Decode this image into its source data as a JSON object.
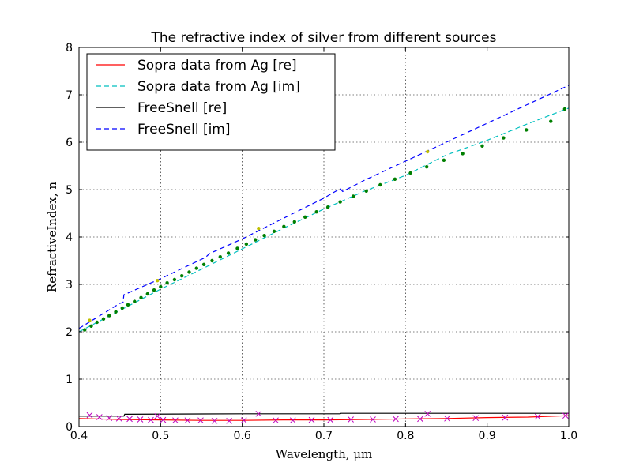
{
  "chart_data": {
    "type": "line",
    "title": "The refractive index of silver from different sources",
    "xlabel": "Wavelength, μm",
    "ylabel": "RefractiveIndex, n",
    "xlim": [
      0.4,
      1.0
    ],
    "ylim": [
      0,
      8
    ],
    "x_ticks": [
      "0.4",
      "0.5",
      "0.6",
      "0.7",
      "0.8",
      "0.9",
      "1.0"
    ],
    "y_ticks": [
      "0",
      "1",
      "2",
      "3",
      "4",
      "5",
      "6",
      "7",
      "8"
    ],
    "grid": true,
    "legend_position": "top-left",
    "series": [
      {
        "name": "Sopra data from Ag [re]",
        "color": "#ff0000",
        "dash": "solid",
        "x": [
          0.4,
          0.45,
          0.5,
          0.55,
          0.6,
          0.65,
          0.7,
          0.75,
          0.8,
          0.85,
          0.9,
          0.95,
          1.0
        ],
        "y": [
          0.17,
          0.15,
          0.14,
          0.13,
          0.13,
          0.14,
          0.14,
          0.15,
          0.16,
          0.17,
          0.19,
          0.2,
          0.23
        ]
      },
      {
        "name": "Sopra data from Ag [im]",
        "color": "#00bfbf",
        "dash": "dashed",
        "x": [
          0.4,
          0.45,
          0.5,
          0.55,
          0.6,
          0.65,
          0.7,
          0.75,
          0.8,
          0.85,
          0.9,
          0.95,
          1.0
        ],
        "y": [
          2.0,
          2.45,
          2.9,
          3.32,
          3.75,
          4.18,
          4.59,
          4.97,
          5.3,
          5.73,
          6.04,
          6.39,
          6.72
        ]
      },
      {
        "name": "FreeSnell [re]",
        "color": "#000000",
        "dash": "solid",
        "x": [
          0.4,
          0.455,
          0.456,
          0.6,
          0.72,
          0.721,
          1.0
        ],
        "y": [
          0.22,
          0.22,
          0.26,
          0.27,
          0.27,
          0.28,
          0.28
        ]
      },
      {
        "name": "FreeSnell [im]",
        "color": "#0000ff",
        "dash": "dashed",
        "x": [
          0.4,
          0.45,
          0.454,
          0.455,
          0.5,
          0.555,
          0.558,
          0.56,
          0.6,
          0.65,
          0.7,
          0.72,
          0.723,
          0.75,
          0.8,
          0.85,
          0.9,
          0.95,
          1.0
        ],
        "y": [
          2.07,
          2.6,
          2.62,
          2.78,
          3.12,
          3.57,
          3.62,
          3.65,
          3.96,
          4.39,
          4.82,
          5.02,
          4.96,
          5.2,
          5.6,
          6.0,
          6.4,
          6.8,
          7.2
        ]
      }
    ],
    "markers": [
      {
        "shape": "dot",
        "color": "#007f00",
        "x": [
          0.407,
          0.415,
          0.422,
          0.43,
          0.437,
          0.445,
          0.453,
          0.46,
          0.468,
          0.476,
          0.484,
          0.492,
          0.5,
          0.508,
          0.517,
          0.526,
          0.535,
          0.544,
          0.553,
          0.563,
          0.573,
          0.583,
          0.594,
          0.605,
          0.616,
          0.627,
          0.639,
          0.651,
          0.664,
          0.677,
          0.691,
          0.705,
          0.72,
          0.736,
          0.752,
          0.769,
          0.787,
          0.806,
          0.826,
          0.847,
          0.87,
          0.894,
          0.92,
          0.948,
          0.978,
          0.995
        ],
        "y": [
          2.04,
          2.12,
          2.2,
          2.27,
          2.34,
          2.42,
          2.5,
          2.57,
          2.64,
          2.72,
          2.8,
          2.88,
          2.95,
          3.03,
          3.1,
          3.18,
          3.26,
          3.34,
          3.42,
          3.5,
          3.58,
          3.66,
          3.76,
          3.85,
          3.94,
          4.03,
          4.12,
          4.22,
          4.32,
          4.42,
          4.53,
          4.63,
          4.74,
          4.86,
          4.97,
          5.1,
          5.22,
          5.35,
          5.48,
          5.62,
          5.76,
          5.92,
          6.09,
          6.26,
          6.44,
          6.7
        ]
      },
      {
        "shape": "dot",
        "color": "#bfbf00",
        "x": [
          0.413,
          0.496,
          0.62,
          0.827
        ],
        "y": [
          2.24,
          3.08,
          4.18,
          5.8
        ]
      },
      {
        "shape": "x",
        "color": "#bf00bf",
        "x": [
          0.413,
          0.425,
          0.437,
          0.449,
          0.462,
          0.475,
          0.488,
          0.496,
          0.503,
          0.518,
          0.533,
          0.549,
          0.566,
          0.584,
          0.602,
          0.62,
          0.641,
          0.662,
          0.685,
          0.708,
          0.733,
          0.76,
          0.788,
          0.818,
          0.827,
          0.851,
          0.886,
          0.922,
          0.962,
          0.996
        ],
        "y": [
          0.24,
          0.2,
          0.18,
          0.17,
          0.16,
          0.15,
          0.14,
          0.22,
          0.14,
          0.13,
          0.13,
          0.13,
          0.12,
          0.12,
          0.13,
          0.27,
          0.13,
          0.13,
          0.14,
          0.14,
          0.15,
          0.15,
          0.16,
          0.16,
          0.27,
          0.17,
          0.18,
          0.19,
          0.21,
          0.23
        ]
      }
    ]
  }
}
